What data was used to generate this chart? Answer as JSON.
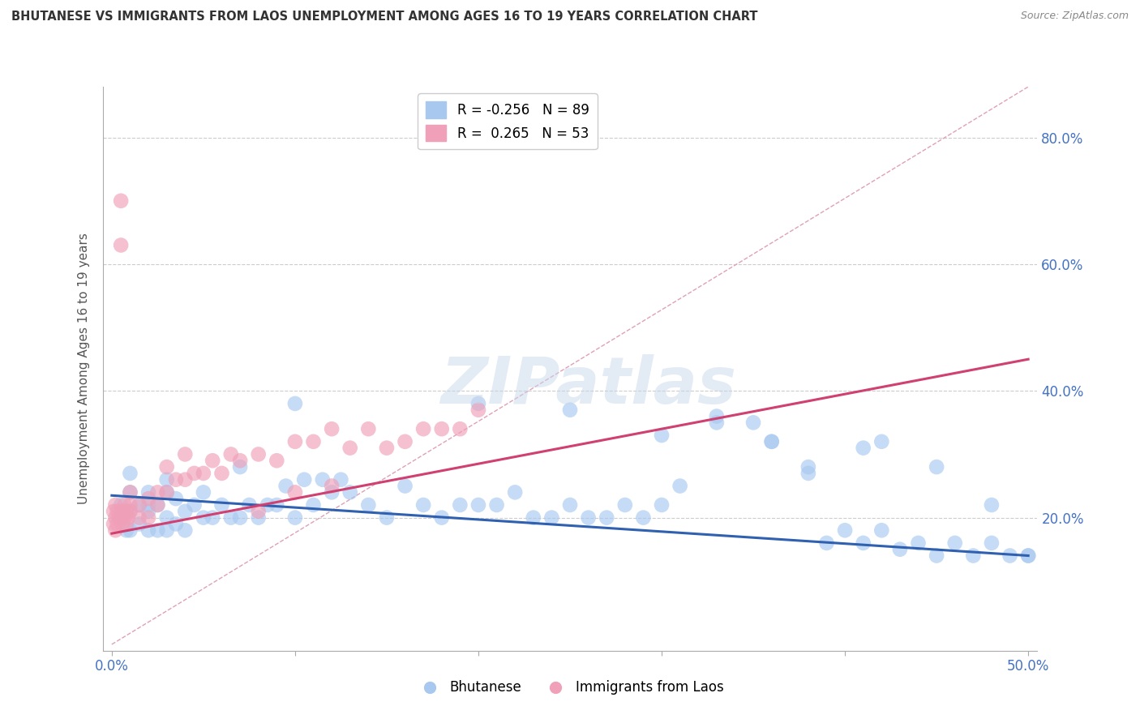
{
  "title": "BHUTANESE VS IMMIGRANTS FROM LAOS UNEMPLOYMENT AMONG AGES 16 TO 19 YEARS CORRELATION CHART",
  "source": "Source: ZipAtlas.com",
  "ylabel": "Unemployment Among Ages 16 to 19 years",
  "xlim": [
    -0.005,
    0.505
  ],
  "ylim": [
    -0.01,
    0.88
  ],
  "xticks": [
    0.0,
    0.1,
    0.2,
    0.3,
    0.4,
    0.5
  ],
  "yticks": [
    0.0,
    0.2,
    0.4,
    0.6,
    0.8
  ],
  "ytick_labels_right": [
    "",
    "20.0%",
    "40.0%",
    "60.0%",
    "80.0%"
  ],
  "xtick_labels_bottom": [
    "0.0%",
    "",
    "",
    "",
    "",
    "50.0%"
  ],
  "legend1_label": "R = -0.256   N = 89",
  "legend2_label": "R =  0.265   N = 53",
  "legend_group1": "Bhutanese",
  "legend_group2": "Immigrants from Laos",
  "blue_color": "#A8C8F0",
  "pink_color": "#F0A0B8",
  "blue_line_color": "#3060B0",
  "pink_line_color": "#D04070",
  "diag_line_color": "#E0A0B8",
  "background_color": "#FFFFFF",
  "grid_color": "#CCCCCC",
  "title_color": "#333333",
  "blue_scatter_x": [
    0.005,
    0.005,
    0.008,
    0.01,
    0.01,
    0.01,
    0.01,
    0.015,
    0.015,
    0.02,
    0.02,
    0.02,
    0.02,
    0.025,
    0.025,
    0.03,
    0.03,
    0.03,
    0.03,
    0.035,
    0.035,
    0.04,
    0.04,
    0.045,
    0.05,
    0.05,
    0.055,
    0.06,
    0.065,
    0.07,
    0.075,
    0.08,
    0.085,
    0.09,
    0.095,
    0.1,
    0.105,
    0.11,
    0.115,
    0.12,
    0.125,
    0.13,
    0.14,
    0.15,
    0.16,
    0.17,
    0.18,
    0.19,
    0.2,
    0.21,
    0.22,
    0.23,
    0.24,
    0.25,
    0.26,
    0.27,
    0.28,
    0.29,
    0.3,
    0.31,
    0.33,
    0.35,
    0.36,
    0.38,
    0.39,
    0.4,
    0.41,
    0.42,
    0.43,
    0.44,
    0.45,
    0.46,
    0.47,
    0.48,
    0.49,
    0.5,
    0.33,
    0.36,
    0.41,
    0.1,
    0.07,
    0.2,
    0.25,
    0.3,
    0.38,
    0.42,
    0.45,
    0.48,
    0.5
  ],
  "blue_scatter_y": [
    0.2,
    0.22,
    0.18,
    0.18,
    0.21,
    0.24,
    0.27,
    0.19,
    0.22,
    0.18,
    0.21,
    0.24,
    0.22,
    0.18,
    0.22,
    0.18,
    0.2,
    0.24,
    0.26,
    0.19,
    0.23,
    0.18,
    0.21,
    0.22,
    0.2,
    0.24,
    0.2,
    0.22,
    0.2,
    0.2,
    0.22,
    0.2,
    0.22,
    0.22,
    0.25,
    0.2,
    0.26,
    0.22,
    0.26,
    0.24,
    0.26,
    0.24,
    0.22,
    0.2,
    0.25,
    0.22,
    0.2,
    0.22,
    0.22,
    0.22,
    0.24,
    0.2,
    0.2,
    0.22,
    0.2,
    0.2,
    0.22,
    0.2,
    0.22,
    0.25,
    0.35,
    0.35,
    0.32,
    0.27,
    0.16,
    0.18,
    0.16,
    0.18,
    0.15,
    0.16,
    0.14,
    0.16,
    0.14,
    0.16,
    0.14,
    0.14,
    0.36,
    0.32,
    0.31,
    0.38,
    0.28,
    0.38,
    0.37,
    0.33,
    0.28,
    0.32,
    0.28,
    0.22,
    0.14
  ],
  "pink_scatter_x": [
    0.001,
    0.001,
    0.002,
    0.002,
    0.002,
    0.003,
    0.003,
    0.004,
    0.005,
    0.005,
    0.006,
    0.006,
    0.007,
    0.007,
    0.008,
    0.008,
    0.009,
    0.01,
    0.01,
    0.01,
    0.015,
    0.015,
    0.02,
    0.02,
    0.025,
    0.025,
    0.03,
    0.03,
    0.035,
    0.04,
    0.04,
    0.045,
    0.05,
    0.055,
    0.06,
    0.065,
    0.07,
    0.08,
    0.09,
    0.1,
    0.11,
    0.12,
    0.13,
    0.14,
    0.15,
    0.16,
    0.17,
    0.18,
    0.19,
    0.2,
    0.08,
    0.1,
    0.12
  ],
  "pink_scatter_y": [
    0.19,
    0.21,
    0.18,
    0.2,
    0.22,
    0.19,
    0.21,
    0.2,
    0.7,
    0.63,
    0.19,
    0.21,
    0.2,
    0.22,
    0.19,
    0.21,
    0.2,
    0.21,
    0.22,
    0.24,
    0.2,
    0.22,
    0.2,
    0.23,
    0.22,
    0.24,
    0.24,
    0.28,
    0.26,
    0.26,
    0.3,
    0.27,
    0.27,
    0.29,
    0.27,
    0.3,
    0.29,
    0.3,
    0.29,
    0.32,
    0.32,
    0.34,
    0.31,
    0.34,
    0.31,
    0.32,
    0.34,
    0.34,
    0.34,
    0.37,
    0.21,
    0.24,
    0.25
  ],
  "blue_trend_x": [
    0.0,
    0.5
  ],
  "blue_trend_y": [
    0.235,
    0.14
  ],
  "pink_trend_x": [
    0.0,
    0.5
  ],
  "pink_trend_y": [
    0.175,
    0.45
  ],
  "diag_trend_x": [
    0.0,
    0.5
  ],
  "diag_trend_y": [
    0.0,
    0.88
  ]
}
